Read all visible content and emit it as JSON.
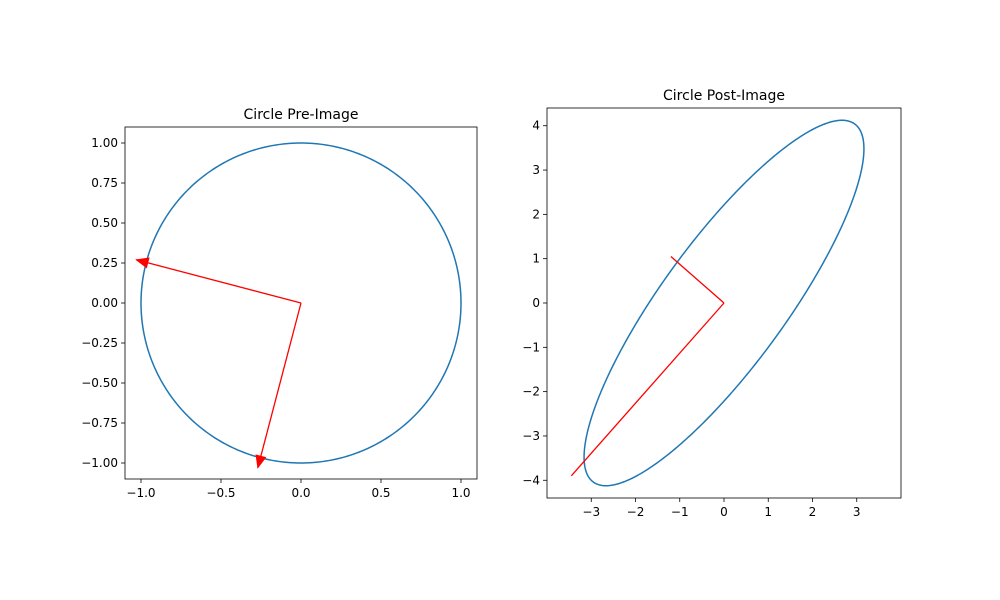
{
  "chart_data": [
    {
      "type": "line",
      "title": "Circle Pre-Image",
      "xlim": [
        -1.1,
        1.1
      ],
      "ylim": [
        -1.1,
        1.1
      ],
      "xticks": [
        -1.0,
        -0.5,
        0.0,
        0.5,
        1.0
      ],
      "xtick_labels": [
        "−1.0",
        "−0.5",
        "0.0",
        "0.5",
        "1.0"
      ],
      "yticks": [
        -1.0,
        -0.75,
        -0.5,
        -0.25,
        0.0,
        0.25,
        0.5,
        0.75,
        1.0
      ],
      "ytick_labels": [
        "−1.00",
        "−0.75",
        "−0.50",
        "−0.25",
        "0.00",
        "0.25",
        "0.50",
        "0.75",
        "1.00"
      ],
      "curve": {
        "shape": "ellipse",
        "center": [
          0,
          0
        ],
        "semi_axis_1": [
          1,
          0
        ],
        "semi_axis_2": [
          0,
          1
        ],
        "color": "#1f77b4"
      },
      "vectors": [
        {
          "from": [
            0,
            0
          ],
          "to": [
            -1.03,
            0.27
          ],
          "color": "#ff0000",
          "head": true
        },
        {
          "from": [
            0,
            0
          ],
          "to": [
            -0.27,
            -1.03
          ],
          "color": "#ff0000",
          "head": true
        }
      ],
      "grid": false,
      "legend": "none"
    },
    {
      "type": "line",
      "title": "Circle Post-Image",
      "xlim": [
        -4.0,
        4.0
      ],
      "ylim": [
        -4.4,
        4.4
      ],
      "xticks": [
        -3,
        -2,
        -1,
        0,
        1,
        2,
        3
      ],
      "xtick_labels": [
        "−3",
        "−2",
        "−1",
        "0",
        "1",
        "2",
        "3"
      ],
      "yticks": [
        -4,
        -3,
        -2,
        -1,
        0,
        1,
        2,
        3,
        4
      ],
      "ytick_labels": [
        "−4",
        "−3",
        "−2",
        "−1",
        "0",
        "1",
        "2",
        "3",
        "4"
      ],
      "curve": {
        "shape": "ellipse",
        "center": [
          0,
          0
        ],
        "semi_axis_1": [
          3,
          4
        ],
        "semi_axis_2": [
          1,
          -1
        ],
        "color": "#1f77b4"
      },
      "vectors": [
        {
          "from": [
            0,
            0
          ],
          "to": [
            -3.45,
            -3.9
          ],
          "color": "#ff0000",
          "head": false
        },
        {
          "from": [
            0,
            0
          ],
          "to": [
            -1.2,
            1.05
          ],
          "color": "#ff0000",
          "head": false
        }
      ],
      "grid": false,
      "legend": "none"
    }
  ]
}
